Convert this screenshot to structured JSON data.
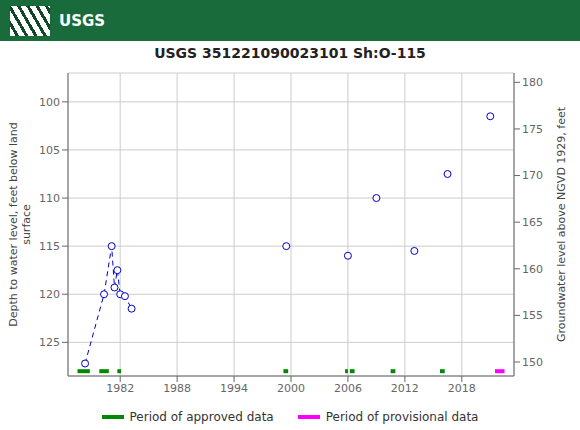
{
  "chart_data": {
    "type": "scatter",
    "title": "USGS 351221090023101 Sh:O-115",
    "annotations": [
      {
        "text": "USGS",
        "color": "#1a6b3c"
      }
    ],
    "ylabel": "Depth to water level, feet below land\nsurface",
    "y2label": "Groundwater level above NGVD 1929, feet",
    "xlim": [
      1976.5,
      2023.5
    ],
    "xticks": [
      1982,
      1988,
      1994,
      2000,
      2006,
      2012,
      2018
    ],
    "ylim": [
      128.5,
      97.0
    ],
    "yticks": [
      100,
      105,
      110,
      115,
      120,
      125
    ],
    "y2lim": [
      148.5,
      181.0
    ],
    "y2ticks": [
      150,
      155,
      160,
      165,
      170,
      175,
      180
    ],
    "grid": true,
    "legend": "bottom",
    "series": [
      {
        "type": "line",
        "line_style": "dashed",
        "color": "#0000cc",
        "x": [
          1978.3,
          1980.3,
          1981.1,
          1981.4,
          1981.7,
          1982.0,
          1982.5,
          1983.2
        ],
        "values": [
          127.2,
          120.0,
          115.0,
          119.3,
          117.5,
          120.0,
          120.2,
          121.5
        ]
      },
      {
        "type": "scatter",
        "marker": "open_circle",
        "color": "#0000cc",
        "x": [
          1978.3,
          1980.3,
          1981.1,
          1981.4,
          1981.7,
          1982.0,
          1982.5,
          1983.2,
          1999.5,
          2006.0,
          2009.0,
          2013.0,
          2016.5,
          2021.0
        ],
        "values": [
          127.2,
          120.0,
          115.0,
          119.3,
          117.5,
          120.0,
          120.2,
          121.5,
          115.0,
          116.0,
          110.0,
          115.5,
          107.5,
          101.5
        ]
      },
      {
        "name": "Period of approved data",
        "type": "segments",
        "color": "#008800",
        "segments": [
          [
            1977.5,
            1978.8
          ],
          [
            1979.8,
            1980.8
          ],
          [
            1981.7,
            1982.1
          ],
          [
            1999.2,
            1999.7
          ],
          [
            2005.7,
            2006.0
          ],
          [
            2006.2,
            2006.7
          ],
          [
            2010.5,
            2011.0
          ],
          [
            2015.7,
            2016.2
          ]
        ],
        "y": 128.0
      },
      {
        "name": "Period of provisional data",
        "type": "segments",
        "color": "#ff00ff",
        "segments": [
          [
            2021.5,
            2022.5
          ]
        ],
        "y": 128.0
      }
    ]
  }
}
